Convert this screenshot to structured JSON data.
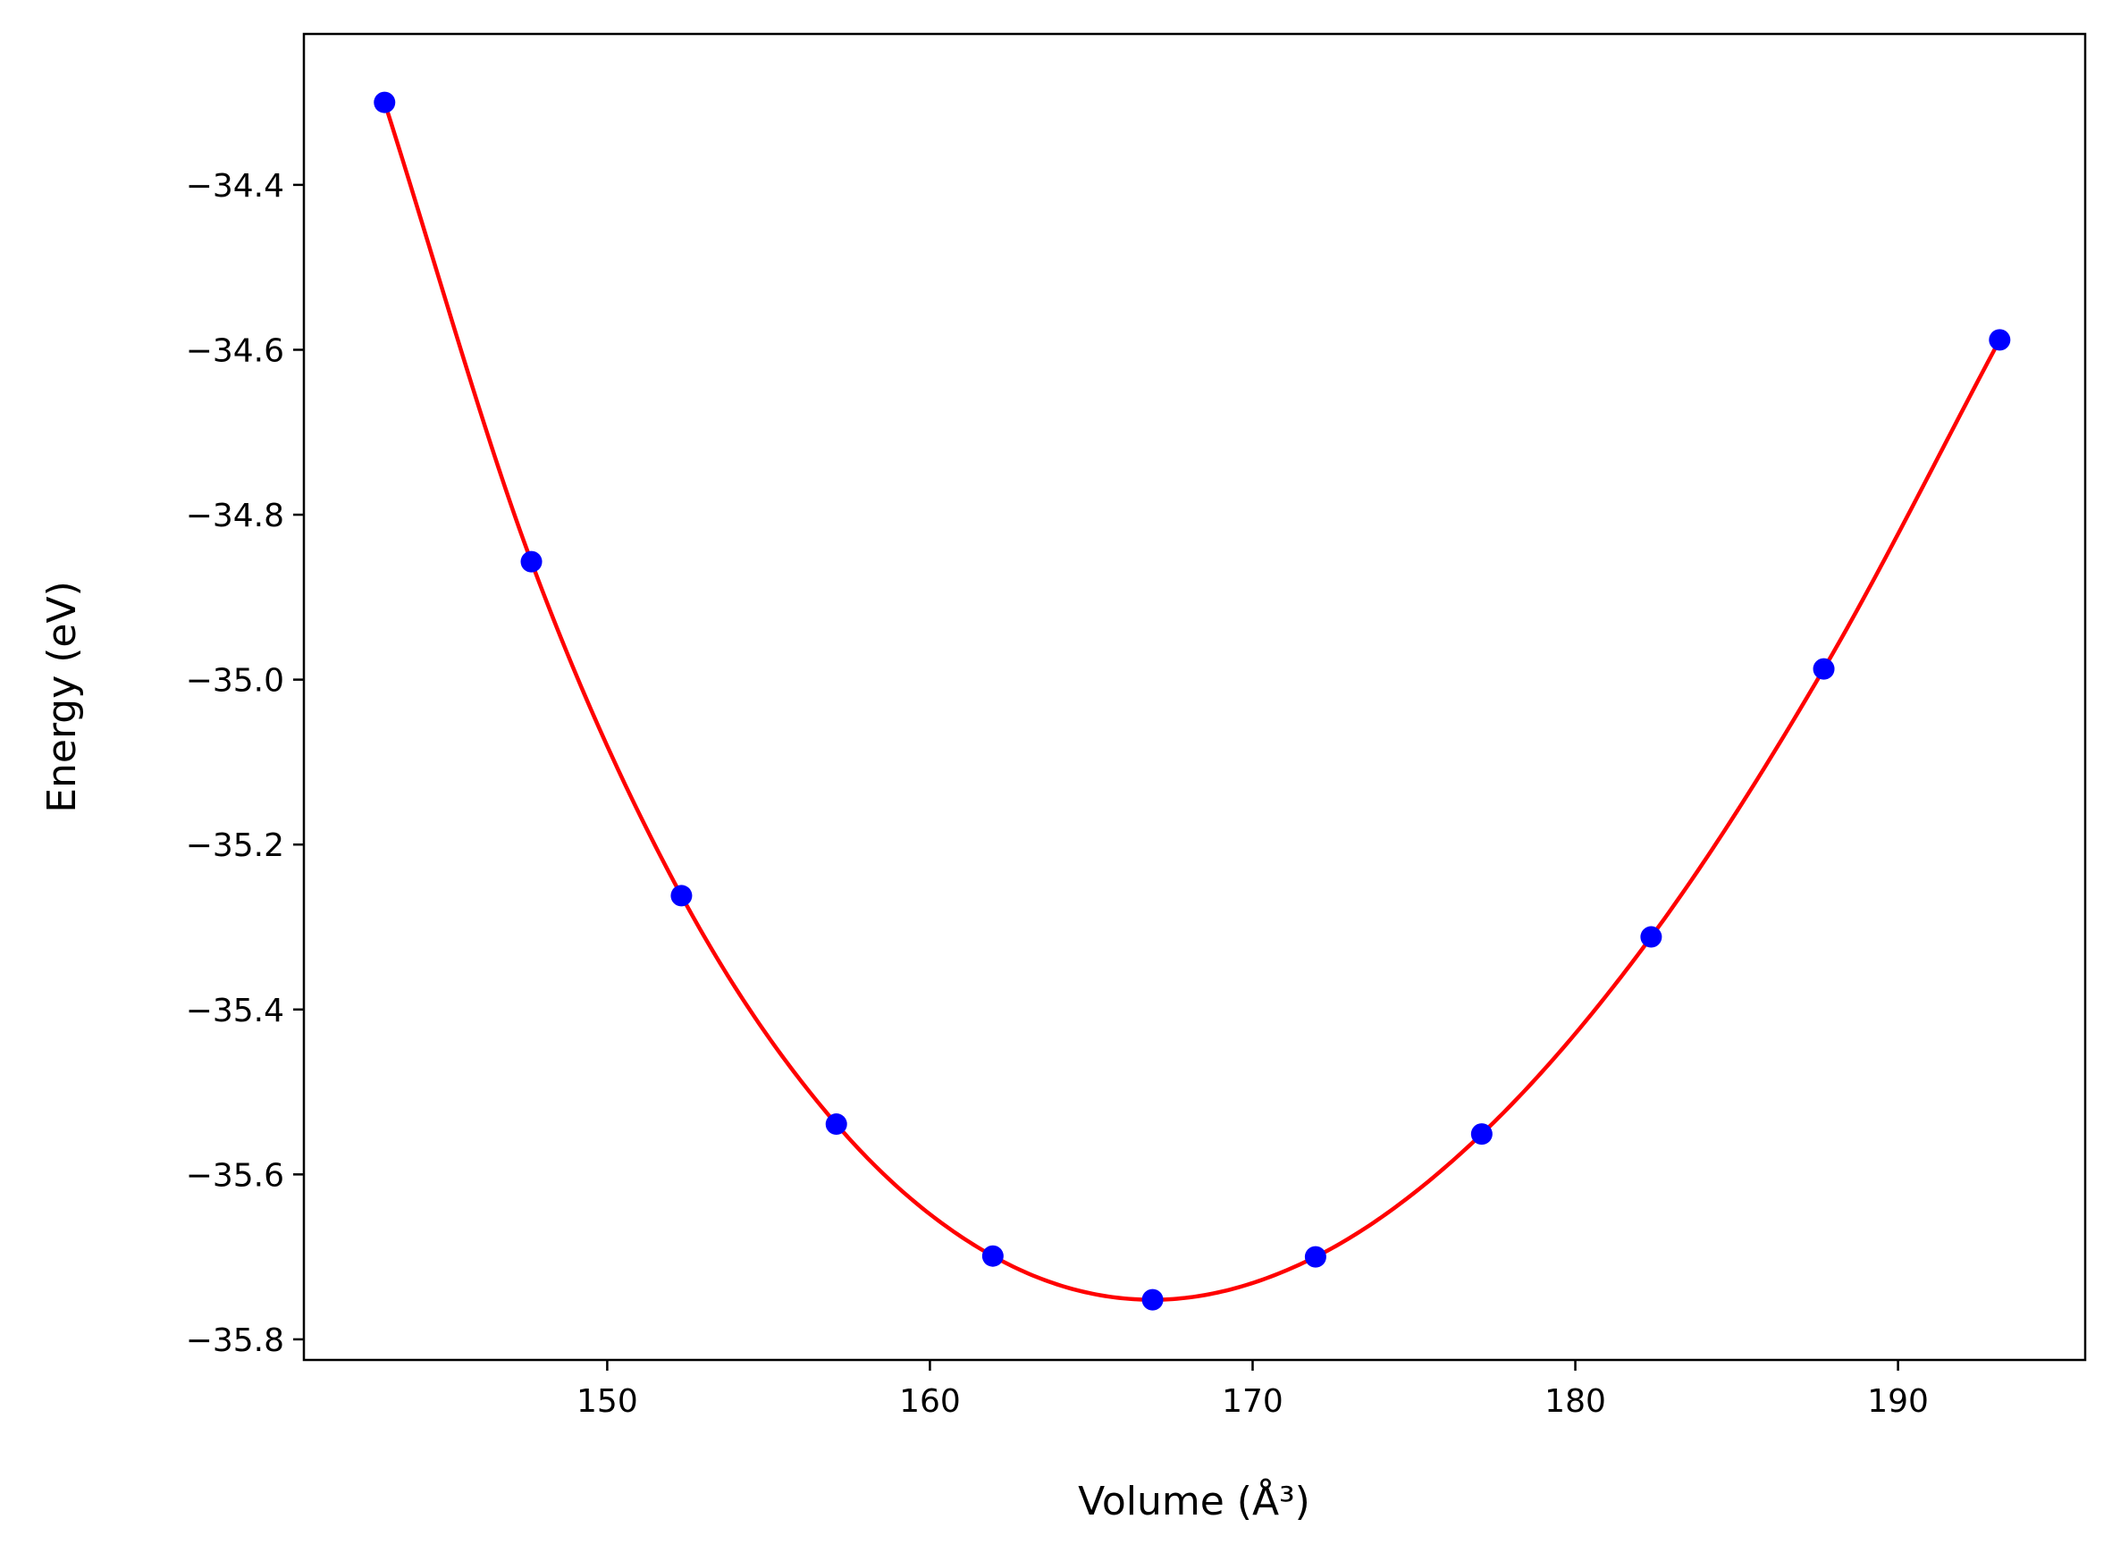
{
  "chart_data": {
    "type": "scatter",
    "title": "",
    "xlabel": "Volume (Å³)",
    "ylabel": "Energy (eV)",
    "xlim": [
      140.6,
      195.8
    ],
    "ylim": [
      -35.825,
      -34.217
    ],
    "xticks": [
      150,
      160,
      170,
      180,
      190
    ],
    "xtick_labels": [
      "150",
      "160",
      "170",
      "180",
      "190"
    ],
    "yticks": [
      -34.4,
      -34.6,
      -34.8,
      -35.0,
      -35.2,
      -35.4,
      -35.6,
      -35.8
    ],
    "ytick_labels": [
      "−34.4",
      "−34.6",
      "−34.8",
      "−35.0",
      "−35.2",
      "−35.4",
      "−35.6",
      "−35.8"
    ],
    "grid": false,
    "legend": "none",
    "series": [
      {
        "kind": "scatter",
        "color": "#0000ff",
        "x": [
          143.1,
          147.65,
          152.3,
          157.1,
          161.95,
          166.9,
          171.95,
          177.1,
          182.35,
          187.7,
          193.15
        ],
        "y": [
          -34.3,
          -34.857,
          -35.262,
          -35.539,
          -35.699,
          -35.752,
          -35.7,
          -35.551,
          -35.312,
          -34.987,
          -34.588
        ]
      },
      {
        "kind": "line",
        "color": "#ff0000",
        "fit": {
          "x": [
            143.1,
            147.65,
            152.3,
            157.1,
            161.95,
            166.9,
            171.95,
            177.1,
            182.35,
            187.7,
            193.15
          ],
          "y": [
            -34.3,
            -34.857,
            -35.262,
            -35.539,
            -35.699,
            -35.752,
            -35.7,
            -35.551,
            -35.312,
            -34.987,
            -34.588
          ]
        }
      }
    ]
  }
}
